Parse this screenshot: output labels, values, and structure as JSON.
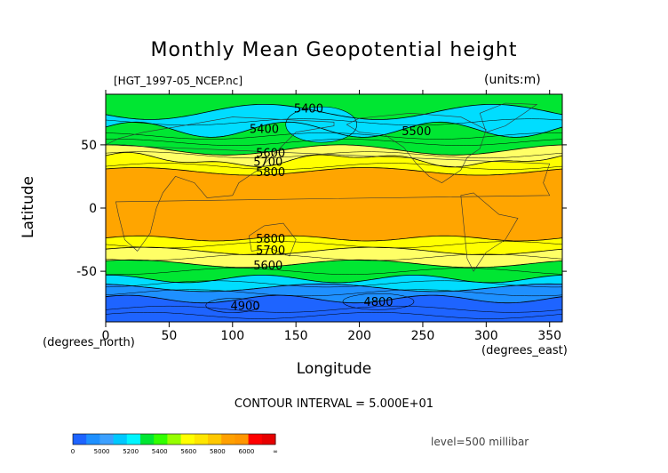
{
  "chart_data": {
    "type": "contour",
    "title": "Monthly Mean Geopotential height",
    "file_label": "[HGT_1997-05_NCEP.nc]",
    "units_label": "(units:m)",
    "xlabel": "Longitude",
    "ylabel": "Latitude",
    "x_extra_label": "(degrees_east)",
    "y_extra_label": "(degrees_north)",
    "xlim": [
      0,
      360
    ],
    "ylim": [
      -90,
      90
    ],
    "x_ticks": [
      "0",
      "50",
      "100",
      "150",
      "200",
      "250",
      "300",
      "350"
    ],
    "y_ticks": [
      "50",
      "0",
      "-50"
    ],
    "contour_interval": "CONTOUR INTERVAL = 5.000E+01",
    "level": "level=500 millibar",
    "contour_labels": [
      {
        "text": "5400",
        "x": 160,
        "y": 79
      },
      {
        "text": "5400",
        "x": 125,
        "y": 63
      },
      {
        "text": "5500",
        "x": 245,
        "y": 61
      },
      {
        "text": "5600",
        "x": 130,
        "y": 44
      },
      {
        "text": "5700",
        "x": 128,
        "y": 37
      },
      {
        "text": "5800",
        "x": 130,
        "y": 29
      },
      {
        "text": "5800",
        "x": 130,
        "y": -24
      },
      {
        "text": "5700",
        "x": 130,
        "y": -33
      },
      {
        "text": "5600",
        "x": 128,
        "y": -45
      },
      {
        "text": "4900",
        "x": 110,
        "y": -77
      },
      {
        "text": "4800",
        "x": 215,
        "y": -74
      }
    ],
    "colorbar": {
      "ticks": [
        "0",
        "5000",
        "5200",
        "5400",
        "5600",
        "5800",
        "6000",
        "∞"
      ],
      "colors": [
        "#1E64FF",
        "#1E90FF",
        "#3CA0FF",
        "#00C8FF",
        "#00F5FF",
        "#00E632",
        "#32FF00",
        "#96FF00",
        "#FFFF00",
        "#FFE600",
        "#FFC800",
        "#FFA000",
        "#FF9600",
        "#FF0000",
        "#E60000"
      ]
    },
    "bands": [
      {
        "name": "5800-6000",
        "color": "#FFA500"
      },
      {
        "name": "5700-5800",
        "color": "#FFFF00"
      },
      {
        "name": "5600-5700",
        "color": "#FFFF66"
      },
      {
        "name": "5400-5600",
        "color": "#00E632"
      },
      {
        "name": "5200-5400",
        "color": "#00DDFF"
      },
      {
        "name": "5000-5200",
        "color": "#1E90FF"
      },
      {
        "name": "<5000",
        "color": "#1E64FF"
      }
    ]
  }
}
